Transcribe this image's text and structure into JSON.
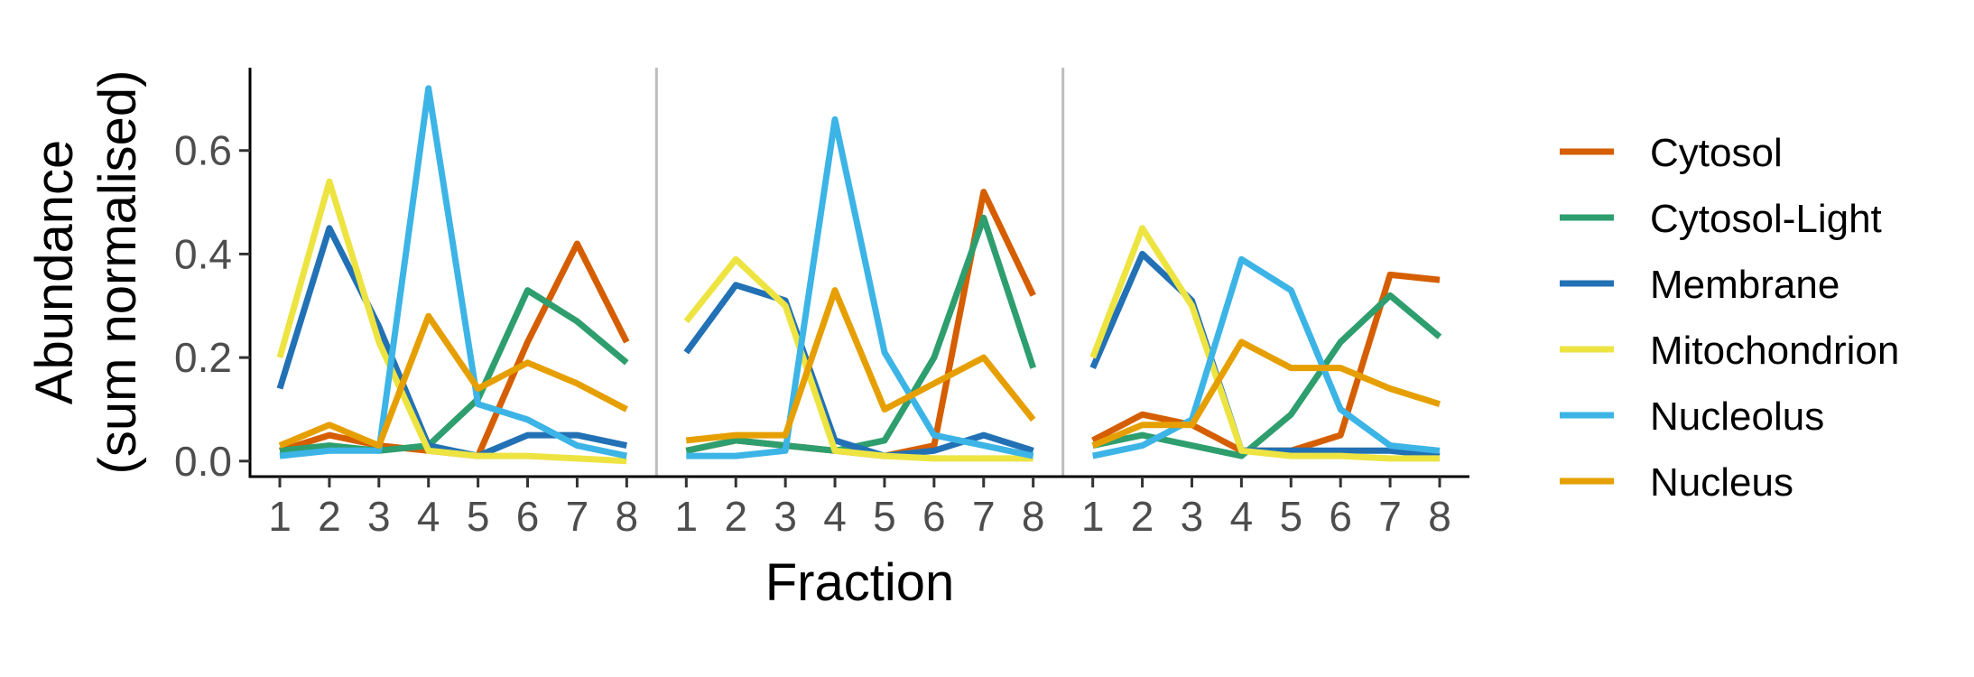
{
  "chart_data": {
    "type": "line",
    "xlabel": "Fraction",
    "ylabel_line1": "Abundance",
    "ylabel_line2": "(sum normalised)",
    "x": [
      1,
      2,
      3,
      4,
      5,
      6,
      7,
      8
    ],
    "x_tick_labels": [
      "1",
      "2",
      "3",
      "4",
      "5",
      "6",
      "7",
      "8"
    ],
    "y_ticks": [
      0.0,
      0.2,
      0.4,
      0.6
    ],
    "y_tick_labels": [
      "0.0",
      "0.2",
      "0.4",
      "0.6"
    ],
    "ylim": [
      -0.03,
      0.76
    ],
    "legend_position": "right",
    "grid": false,
    "series_names": [
      "Cytosol",
      "Cytosol-Light",
      "Membrane",
      "Mitochondrion",
      "Nucleolus",
      "Nucleus"
    ],
    "series_colors": [
      "#D55E00",
      "#2E9E6E",
      "#2271B5",
      "#EDE442",
      "#3CB4E6",
      "#E69F00"
    ],
    "panels": [
      {
        "series": [
          {
            "name": "Cytosol",
            "values": [
              0.02,
              0.05,
              0.03,
              0.02,
              0.01,
              0.23,
              0.42,
              0.23
            ]
          },
          {
            "name": "Cytosol-Light",
            "values": [
              0.02,
              0.03,
              0.02,
              0.03,
              0.12,
              0.33,
              0.27,
              0.19
            ]
          },
          {
            "name": "Membrane",
            "values": [
              0.14,
              0.45,
              0.26,
              0.03,
              0.01,
              0.05,
              0.05,
              0.03
            ]
          },
          {
            "name": "Mitochondrion",
            "values": [
              0.2,
              0.54,
              0.23,
              0.02,
              0.01,
              0.01,
              0.005,
              0.0
            ]
          },
          {
            "name": "Nucleolus",
            "values": [
              0.01,
              0.02,
              0.02,
              0.72,
              0.11,
              0.08,
              0.03,
              0.01
            ]
          },
          {
            "name": "Nucleus",
            "values": [
              0.03,
              0.07,
              0.03,
              0.28,
              0.14,
              0.19,
              0.15,
              0.1
            ]
          }
        ]
      },
      {
        "series": [
          {
            "name": "Cytosol",
            "values": [
              0.02,
              0.04,
              0.03,
              0.02,
              0.01,
              0.03,
              0.52,
              0.32
            ]
          },
          {
            "name": "Cytosol-Light",
            "values": [
              0.02,
              0.04,
              0.03,
              0.02,
              0.04,
              0.2,
              0.47,
              0.18
            ]
          },
          {
            "name": "Membrane",
            "values": [
              0.21,
              0.34,
              0.31,
              0.04,
              0.01,
              0.02,
              0.05,
              0.02
            ]
          },
          {
            "name": "Mitochondrion",
            "values": [
              0.27,
              0.39,
              0.3,
              0.02,
              0.01,
              0.005,
              0.005,
              0.005
            ]
          },
          {
            "name": "Nucleolus",
            "values": [
              0.01,
              0.01,
              0.02,
              0.66,
              0.21,
              0.05,
              0.03,
              0.01
            ]
          },
          {
            "name": "Nucleus",
            "values": [
              0.04,
              0.05,
              0.05,
              0.33,
              0.1,
              0.15,
              0.2,
              0.08
            ]
          }
        ]
      },
      {
        "series": [
          {
            "name": "Cytosol",
            "values": [
              0.04,
              0.09,
              0.07,
              0.02,
              0.02,
              0.05,
              0.36,
              0.35
            ]
          },
          {
            "name": "Cytosol-Light",
            "values": [
              0.03,
              0.05,
              0.03,
              0.01,
              0.09,
              0.23,
              0.32,
              0.24
            ]
          },
          {
            "name": "Membrane",
            "values": [
              0.18,
              0.4,
              0.31,
              0.02,
              0.02,
              0.02,
              0.02,
              0.01
            ]
          },
          {
            "name": "Mitochondrion",
            "values": [
              0.2,
              0.45,
              0.3,
              0.02,
              0.01,
              0.01,
              0.005,
              0.005
            ]
          },
          {
            "name": "Nucleolus",
            "values": [
              0.01,
              0.03,
              0.08,
              0.39,
              0.33,
              0.1,
              0.03,
              0.02
            ]
          },
          {
            "name": "Nucleus",
            "values": [
              0.03,
              0.07,
              0.07,
              0.23,
              0.18,
              0.18,
              0.14,
              0.11
            ]
          }
        ]
      }
    ]
  }
}
